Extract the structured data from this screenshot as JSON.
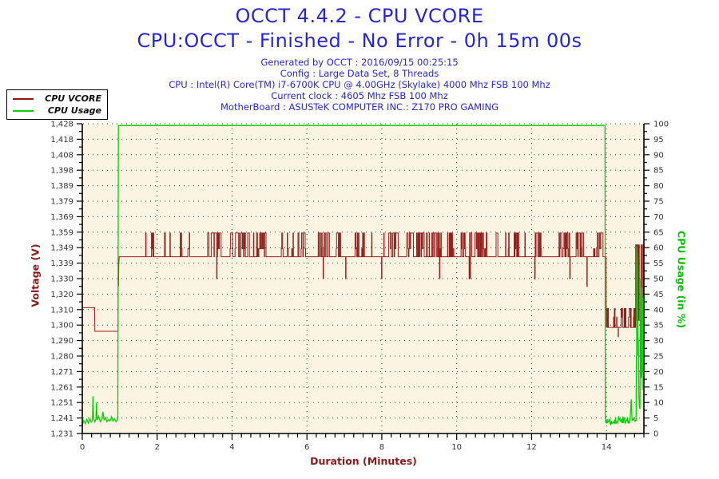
{
  "header": {
    "title": "OCCT 4.4.2 - CPU VCORE",
    "subtitle": "CPU:OCCT - Finished - No Error - 0h 15m 00s",
    "info_lines": [
      "Generated by OCCT : 2016/09/15 00:25:15",
      "Config : Large Data Set, 8 Threads",
      "CPU : Intel(R) Core(TM) i7-6700K CPU @ 4.00GHz (Skylake) 4000 Mhz FSB 100 Mhz",
      "Current clock : 4605 Mhz FSB 100 Mhz",
      "MotherBoard : ASUSTeK COMPUTER INC.: Z170 PRO GAMING"
    ]
  },
  "legend": {
    "items": [
      {
        "label": "CPU VCORE",
        "color": "#8b1717"
      },
      {
        "label": "CPU Usage",
        "color": "#00d400"
      }
    ]
  },
  "colors": {
    "title_blue": "#2626d6",
    "vcore_red": "#96201d",
    "usage_green": "#00d400",
    "label_red": "#8b1a1a",
    "label_green": "#00c400",
    "plot_bg": "#fcf4e2",
    "grid": "#333333",
    "axis": "#000000",
    "tick_text": "#333333"
  },
  "chart_data": {
    "type": "line",
    "title": "OCCT 4.4.2 - CPU VCORE",
    "seed": 13,
    "x_axis": {
      "label": "Duration (Minutes)",
      "min": 0,
      "max": 15,
      "major_ticks": [
        0,
        2,
        4,
        6,
        8,
        10,
        12,
        14
      ],
      "minor_tick_step": 0.25
    },
    "y_left": {
      "label": "Voltage (V)",
      "min": 1.231,
      "max": 1.428,
      "tick_labels": [
        "1,428",
        "1,418",
        "1,408",
        "1,398",
        "1,389",
        "1,379",
        "1,369",
        "1,359",
        "1,349",
        "1,339",
        "1,330",
        "1,320",
        "1,310",
        "1,300",
        "1,290",
        "1,280",
        "1,271",
        "1,261",
        "1,251",
        "1,241",
        "1,231"
      ]
    },
    "y_right": {
      "label": "CPU Usage (in %)",
      "min": 0,
      "max": 100,
      "major_tick_step": 5,
      "minor_tick_step": 2.5
    },
    "series": [
      {
        "name": "CPU VCORE",
        "axis": "left",
        "color": "#96201d",
        "segments": [
          {
            "type": "flat",
            "t0": 0,
            "t1": 0.33,
            "v": 1.311
          },
          {
            "type": "line",
            "points": [
              [
                0.33,
                1.311
              ],
              [
                0.335,
                1.296
              ]
            ]
          },
          {
            "type": "flat",
            "t0": 0.335,
            "t1": 0.955,
            "v": 1.296
          },
          {
            "type": "line",
            "points": [
              [
                0.955,
                1.296
              ],
              [
                0.963,
                1.331
              ],
              [
                0.968,
                1.3245
              ],
              [
                0.975,
                1.338
              ],
              [
                0.985,
                1.3434
              ]
            ]
          },
          {
            "type": "flat",
            "t0": 0.985,
            "t1": 1.68,
            "v": 1.3434
          },
          {
            "type": "pulses",
            "t0": 1.68,
            "t1": 13.99,
            "dt": 0.012,
            "base": 1.3434,
            "hi": 1.3585,
            "mid": 1.3485,
            "dip": 1.3295,
            "deep": 1.3245,
            "p_start": 0.1,
            "p_end": 0.12,
            "p_dip": 0.008,
            "p_deep": 0.003
          },
          {
            "type": "line",
            "points": [
              [
                13.99,
                1.3434
              ],
              [
                13.995,
                1.311
              ],
              [
                14.0,
                1.2985
              ]
            ]
          },
          {
            "type": "pulses",
            "t0": 14.0,
            "t1": 14.78,
            "dt": 0.01,
            "base": 1.2985,
            "hi": 1.3105,
            "mid": 1.305,
            "dip": 1.2925,
            "p_start": 0.12,
            "p_end": 0.22,
            "p_dip": 0.01
          },
          {
            "type": "pulses",
            "t0": 14.78,
            "t1": 15.0,
            "dt": 0.006,
            "base": 1.303,
            "hi": 1.351,
            "mid": 1.334,
            "p_start": 0.55,
            "p_end": 0.25,
            "p_dip": 0
          }
        ]
      },
      {
        "name": "CPU Usage",
        "axis": "right",
        "color": "#00d400",
        "segments": [
          {
            "type": "line",
            "points": [
              [
                0,
                2.8
              ],
              [
                0.04,
                4.2
              ],
              [
                0.08,
                3.2
              ],
              [
                0.12,
                4.6
              ],
              [
                0.16,
                3.4
              ],
              [
                0.2,
                4.8
              ],
              [
                0.24,
                3.6
              ],
              [
                0.27,
                4.2
              ],
              [
                0.285,
                12
              ],
              [
                0.3,
                5
              ],
              [
                0.33,
                3.8
              ],
              [
                0.365,
                4.6
              ],
              [
                0.38,
                10
              ],
              [
                0.4,
                4.4
              ],
              [
                0.44,
                5.6
              ],
              [
                0.48,
                3.8
              ],
              [
                0.52,
                4.6
              ],
              [
                0.55,
                7
              ],
              [
                0.58,
                4.4
              ],
              [
                0.62,
                5.2
              ],
              [
                0.66,
                3.8
              ],
              [
                0.7,
                4.6
              ],
              [
                0.74,
                4.0
              ],
              [
                0.78,
                5.4
              ],
              [
                0.82,
                4.0
              ],
              [
                0.86,
                4.8
              ],
              [
                0.9,
                3.8
              ],
              [
                0.95,
                4.6
              ]
            ]
          },
          {
            "type": "line",
            "points": [
              [
                0.95,
                4.6
              ],
              [
                0.965,
                99.4
              ]
            ]
          },
          {
            "type": "flat",
            "t0": 0.965,
            "t1": 13.96,
            "v": 99.4
          },
          {
            "type": "line",
            "points": [
              [
                13.96,
                99.4
              ],
              [
                13.97,
                4.5
              ]
            ]
          },
          {
            "type": "noise",
            "t0": 13.97,
            "t1": 14.63,
            "dt": 0.016,
            "base": 4.2,
            "amp": 1.4,
            "min": 2.6
          },
          {
            "type": "line",
            "points": [
              [
                14.63,
                4.2
              ],
              [
                14.66,
                11
              ],
              [
                14.685,
                4.2
              ]
            ]
          },
          {
            "type": "noise",
            "t0": 14.685,
            "t1": 14.79,
            "dt": 0.016,
            "base": 4.2,
            "amp": 1.0,
            "min": 3.0
          },
          {
            "type": "line",
            "points": [
              [
                14.79,
                4.2
              ],
              [
                14.8,
                25
              ],
              [
                14.805,
                21
              ],
              [
                14.81,
                60.5
              ],
              [
                14.825,
                55
              ],
              [
                14.84,
                25
              ],
              [
                14.85,
                31
              ],
              [
                14.865,
                12
              ],
              [
                14.88,
                8.5
              ],
              [
                14.895,
                8
              ],
              [
                14.91,
                50
              ],
              [
                14.925,
                18
              ],
              [
                14.94,
                47
              ],
              [
                14.955,
                14
              ],
              [
                14.97,
                44
              ],
              [
                14.985,
                20
              ],
              [
                15.0,
                17
              ]
            ]
          }
        ]
      }
    ]
  }
}
